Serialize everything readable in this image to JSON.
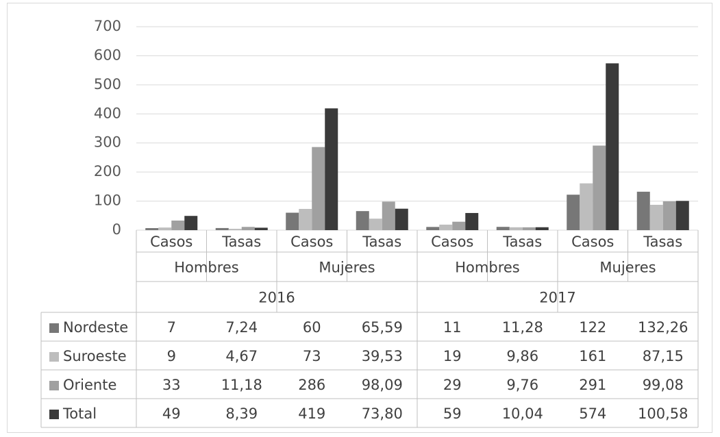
{
  "chart_data": {
    "type": "bar",
    "ylim": [
      0,
      700
    ],
    "yticks": [
      0,
      100,
      200,
      300,
      400,
      500,
      600,
      700
    ],
    "grid": true,
    "legend": "data table (left column)",
    "years": [
      {
        "label": "2016",
        "sexes": [
          {
            "label": "Hombres",
            "measures": [
              "Casos",
              "Tasas"
            ]
          },
          {
            "label": "Mujeres",
            "measures": [
              "Casos",
              "Tasas"
            ]
          }
        ]
      },
      {
        "label": "2017",
        "sexes": [
          {
            "label": "Hombres",
            "measures": [
              "Casos",
              "Tasas"
            ]
          },
          {
            "label": "Mujeres",
            "measures": [
              "Casos",
              "Tasas"
            ]
          }
        ]
      }
    ],
    "series": [
      {
        "name": "Nordeste",
        "color": "#777777",
        "values": [
          7,
          7.24,
          60,
          65.59,
          11,
          11.28,
          122,
          132.26
        ],
        "labels": [
          "7",
          "7,24",
          "60",
          "65,59",
          "11",
          "11,28",
          "122",
          "132,26"
        ]
      },
      {
        "name": "Suroeste",
        "color": "#bdbdbd",
        "values": [
          9,
          4.67,
          73,
          39.53,
          19,
          9.86,
          161,
          87.15
        ],
        "labels": [
          "9",
          "4,67",
          "73",
          "39,53",
          "19",
          "9,86",
          "161",
          "87,15"
        ]
      },
      {
        "name": "Oriente",
        "color": "#a0a0a0",
        "values": [
          33,
          11.18,
          286,
          98.09,
          29,
          9.76,
          291,
          99.08
        ],
        "labels": [
          "33",
          "11,18",
          "286",
          "98,09",
          "29",
          "9,76",
          "291",
          "99,08"
        ]
      },
      {
        "name": "Total",
        "color": "#3a3a3a",
        "values": [
          49,
          8.39,
          419,
          73.8,
          59,
          10.04,
          574,
          100.58
        ],
        "labels": [
          "49",
          "8,39",
          "419",
          "73,80",
          "59",
          "10,04",
          "574",
          "100,58"
        ]
      }
    ]
  }
}
